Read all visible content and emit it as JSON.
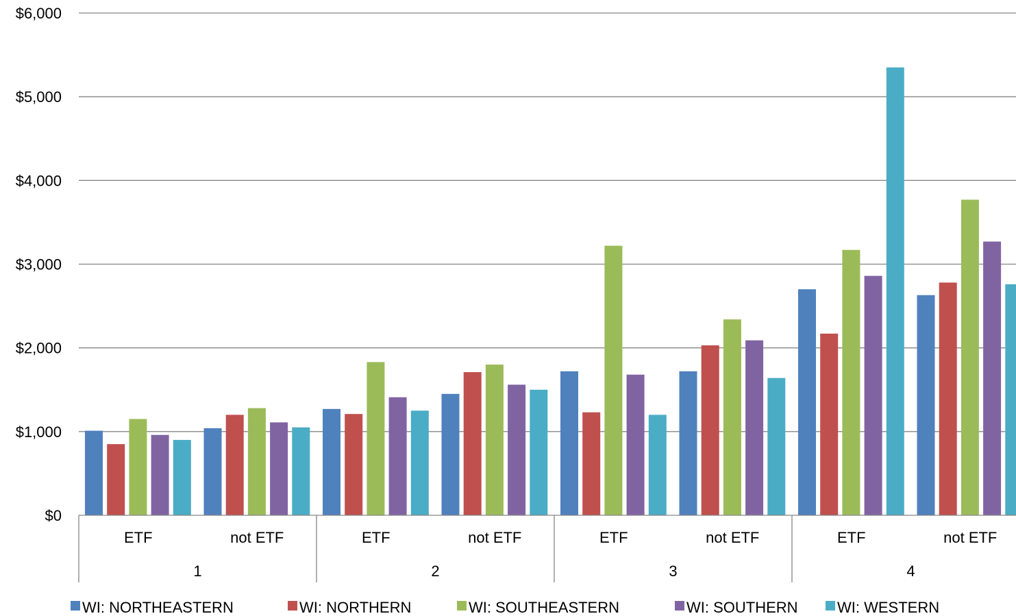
{
  "chart_data": {
    "type": "bar",
    "title": "",
    "xlabel": "",
    "ylabel": "",
    "ylim": [
      0,
      6000
    ],
    "yticks": [
      0,
      1000,
      2000,
      3000,
      4000,
      5000,
      6000
    ],
    "ytick_labels": [
      "$0",
      "$1,000",
      "$2,000",
      "$3,000",
      "$4,000",
      "$5,000",
      "$6,000"
    ],
    "grid": true,
    "legend_position": "bottom",
    "groups": [
      {
        "label": "1",
        "subcategories": [
          "ETF",
          "not ETF"
        ]
      },
      {
        "label": "2",
        "subcategories": [
          "ETF",
          "not ETF"
        ]
      },
      {
        "label": "3",
        "subcategories": [
          "ETF",
          "not ETF"
        ]
      },
      {
        "label": "4",
        "subcategories": [
          "ETF",
          "not ETF"
        ]
      }
    ],
    "categories": [
      "1 ETF",
      "1 not ETF",
      "2 ETF",
      "2 not ETF",
      "3 ETF",
      "3 not ETF",
      "4 ETF",
      "4 not ETF"
    ],
    "series": [
      {
        "name": "WI: NORTHEASTERN",
        "color": "#4F81BD",
        "values": [
          1010,
          1040,
          1270,
          1450,
          1720,
          1720,
          2700,
          2630
        ]
      },
      {
        "name": "WI: NORTHERN",
        "color": "#C0504D",
        "values": [
          850,
          1200,
          1210,
          1710,
          1230,
          2030,
          2170,
          2780
        ]
      },
      {
        "name": "WI: SOUTHEASTERN",
        "color": "#9BBB59",
        "values": [
          1150,
          1280,
          1830,
          1800,
          3220,
          2340,
          3170,
          3770
        ]
      },
      {
        "name": "WI: SOUTHERN",
        "color": "#8064A2",
        "values": [
          960,
          1110,
          1410,
          1560,
          1680,
          2090,
          2860,
          3270
        ]
      },
      {
        "name": "WI: WESTERN",
        "color": "#4BACC6",
        "values": [
          900,
          1050,
          1250,
          1500,
          1200,
          1640,
          5350,
          2760
        ]
      }
    ]
  }
}
